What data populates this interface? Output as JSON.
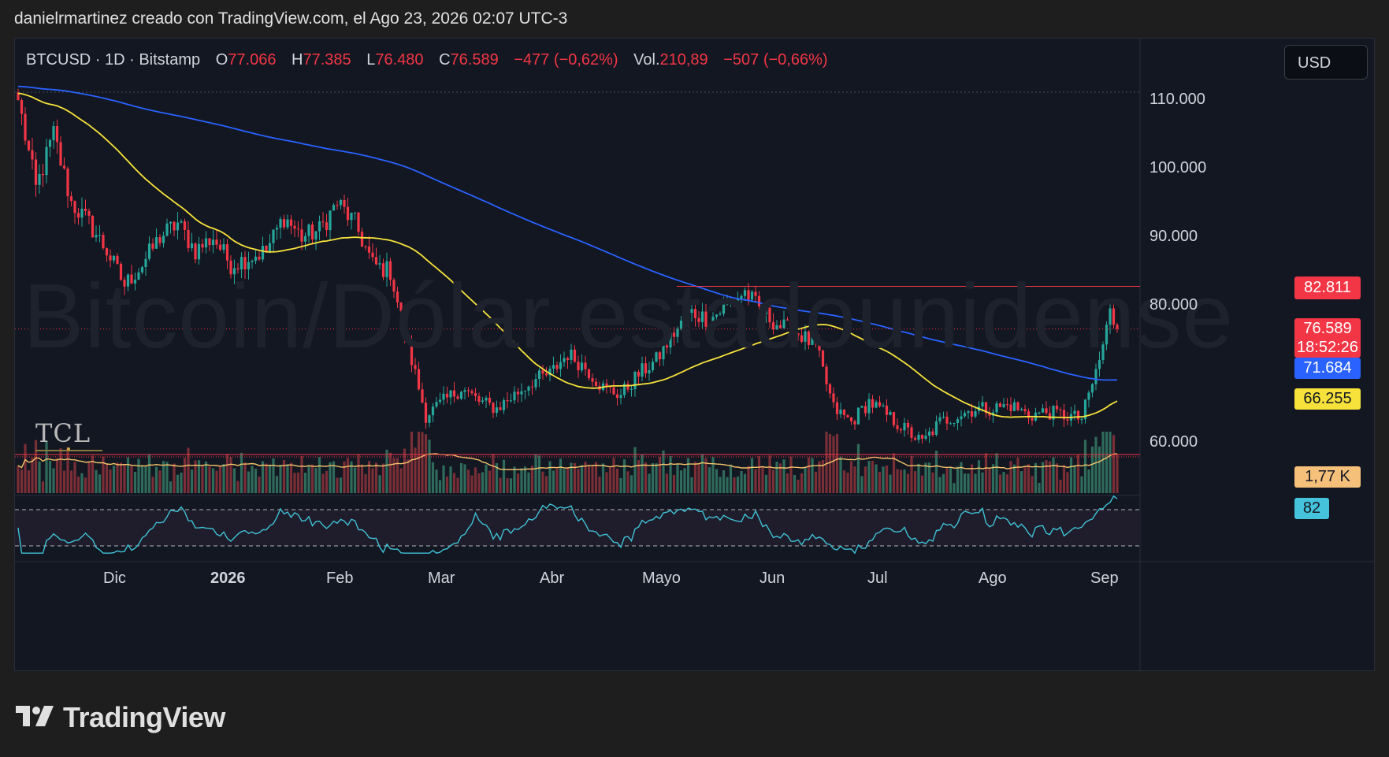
{
  "header": {
    "attribution": "danielrmartinez creado con TradingView.com, el Ago 23, 2026 02:07 UTC-3"
  },
  "legend": {
    "symbol": "BTCUSD · 1D · Bitstamp",
    "open_label": "O",
    "open": "77.066",
    "high_label": "H",
    "high": "77.385",
    "low_label": "L",
    "low": "76.480",
    "close_label": "C",
    "close": "76.589",
    "change": "−477 (−0,62%)",
    "vol_label": "Vol.",
    "vol": "210,89",
    "vol_change": "−507 (−0,66%)"
  },
  "currency_button": "USD",
  "watermark": "Bitcoin/Dólar estadounidense",
  "overlay_logo": "TCL",
  "price_tags": {
    "resistance": "82.811",
    "last_price": "76.589",
    "countdown": "18:52:26",
    "sma200": "71.684",
    "sma50": "66.255",
    "volume": "1,77 K",
    "rsi": "82"
  },
  "colors": {
    "up": "#26a69a",
    "down": "#f23645",
    "sma200": "#2962ff",
    "sma50": "#f7e23b",
    "rsi": "#3fc1d6",
    "vol_ma": "#f5c46a",
    "background": "#131722"
  },
  "footer": {
    "brand": "TradingView"
  },
  "chart_data": {
    "type": "candlestick",
    "symbol": "BTCUSD",
    "interval": "1D",
    "y_axis": {
      "ticks": [
        "110.000",
        "100.000",
        "90.000",
        "80.000",
        "60.000"
      ],
      "ylim": [
        55000,
        112500
      ]
    },
    "x_axis": {
      "ticks": [
        "Dic",
        "2026",
        "Feb",
        "Mar",
        "Abr",
        "Mayo",
        "Jun",
        "Jul",
        "Ago",
        "Sep"
      ]
    },
    "close_anchors": [
      [
        0,
        110000
      ],
      [
        5,
        97000
      ],
      [
        10,
        105000
      ],
      [
        15,
        95000
      ],
      [
        20,
        92000
      ],
      [
        25,
        88000
      ],
      [
        30,
        83000
      ],
      [
        35,
        86000
      ],
      [
        40,
        90000
      ],
      [
        45,
        92000
      ],
      [
        50,
        88000
      ],
      [
        55,
        90000
      ],
      [
        60,
        86000
      ],
      [
        65,
        87000
      ],
      [
        70,
        88000
      ],
      [
        75,
        93000
      ],
      [
        80,
        90000
      ],
      [
        85,
        91000
      ],
      [
        90,
        95000
      ],
      [
        95,
        92000
      ],
      [
        100,
        86000
      ],
      [
        105,
        85000
      ],
      [
        110,
        74000
      ],
      [
        115,
        64000
      ],
      [
        120,
        66000
      ],
      [
        125,
        68000
      ],
      [
        130,
        66000
      ],
      [
        135,
        65000
      ],
      [
        140,
        67000
      ],
      [
        145,
        69000
      ],
      [
        150,
        70000
      ],
      [
        155,
        73000
      ],
      [
        160,
        71000
      ],
      [
        165,
        68000
      ],
      [
        170,
        67000
      ],
      [
        175,
        70000
      ],
      [
        180,
        72000
      ],
      [
        185,
        76000
      ],
      [
        190,
        79000
      ],
      [
        195,
        78000
      ],
      [
        200,
        80000
      ],
      [
        205,
        82000
      ],
      [
        210,
        79000
      ],
      [
        215,
        77000
      ],
      [
        220,
        76000
      ],
      [
        225,
        74000
      ],
      [
        230,
        65000
      ],
      [
        235,
        63000
      ],
      [
        240,
        66000
      ],
      [
        245,
        64000
      ],
      [
        250,
        62000
      ],
      [
        255,
        60000
      ],
      [
        260,
        63000
      ],
      [
        265,
        64000
      ],
      [
        270,
        65000
      ],
      [
        275,
        65000
      ],
      [
        280,
        65500
      ],
      [
        285,
        64000
      ],
      [
        290,
        64500
      ],
      [
        295,
        64000
      ],
      [
        300,
        63500
      ],
      [
        305,
        72000
      ],
      [
        308,
        79000
      ],
      [
        310,
        76589
      ]
    ],
    "series": [
      {
        "name": "SMA 200",
        "last": 71684
      },
      {
        "name": "SMA 50",
        "last": 66255
      },
      {
        "name": "Volume",
        "last": "1,77 K"
      },
      {
        "name": "RSI",
        "last": 82
      }
    ],
    "horizontal_lines": [
      82811,
      76589
    ],
    "legend_position": "top-left",
    "grid": true
  }
}
